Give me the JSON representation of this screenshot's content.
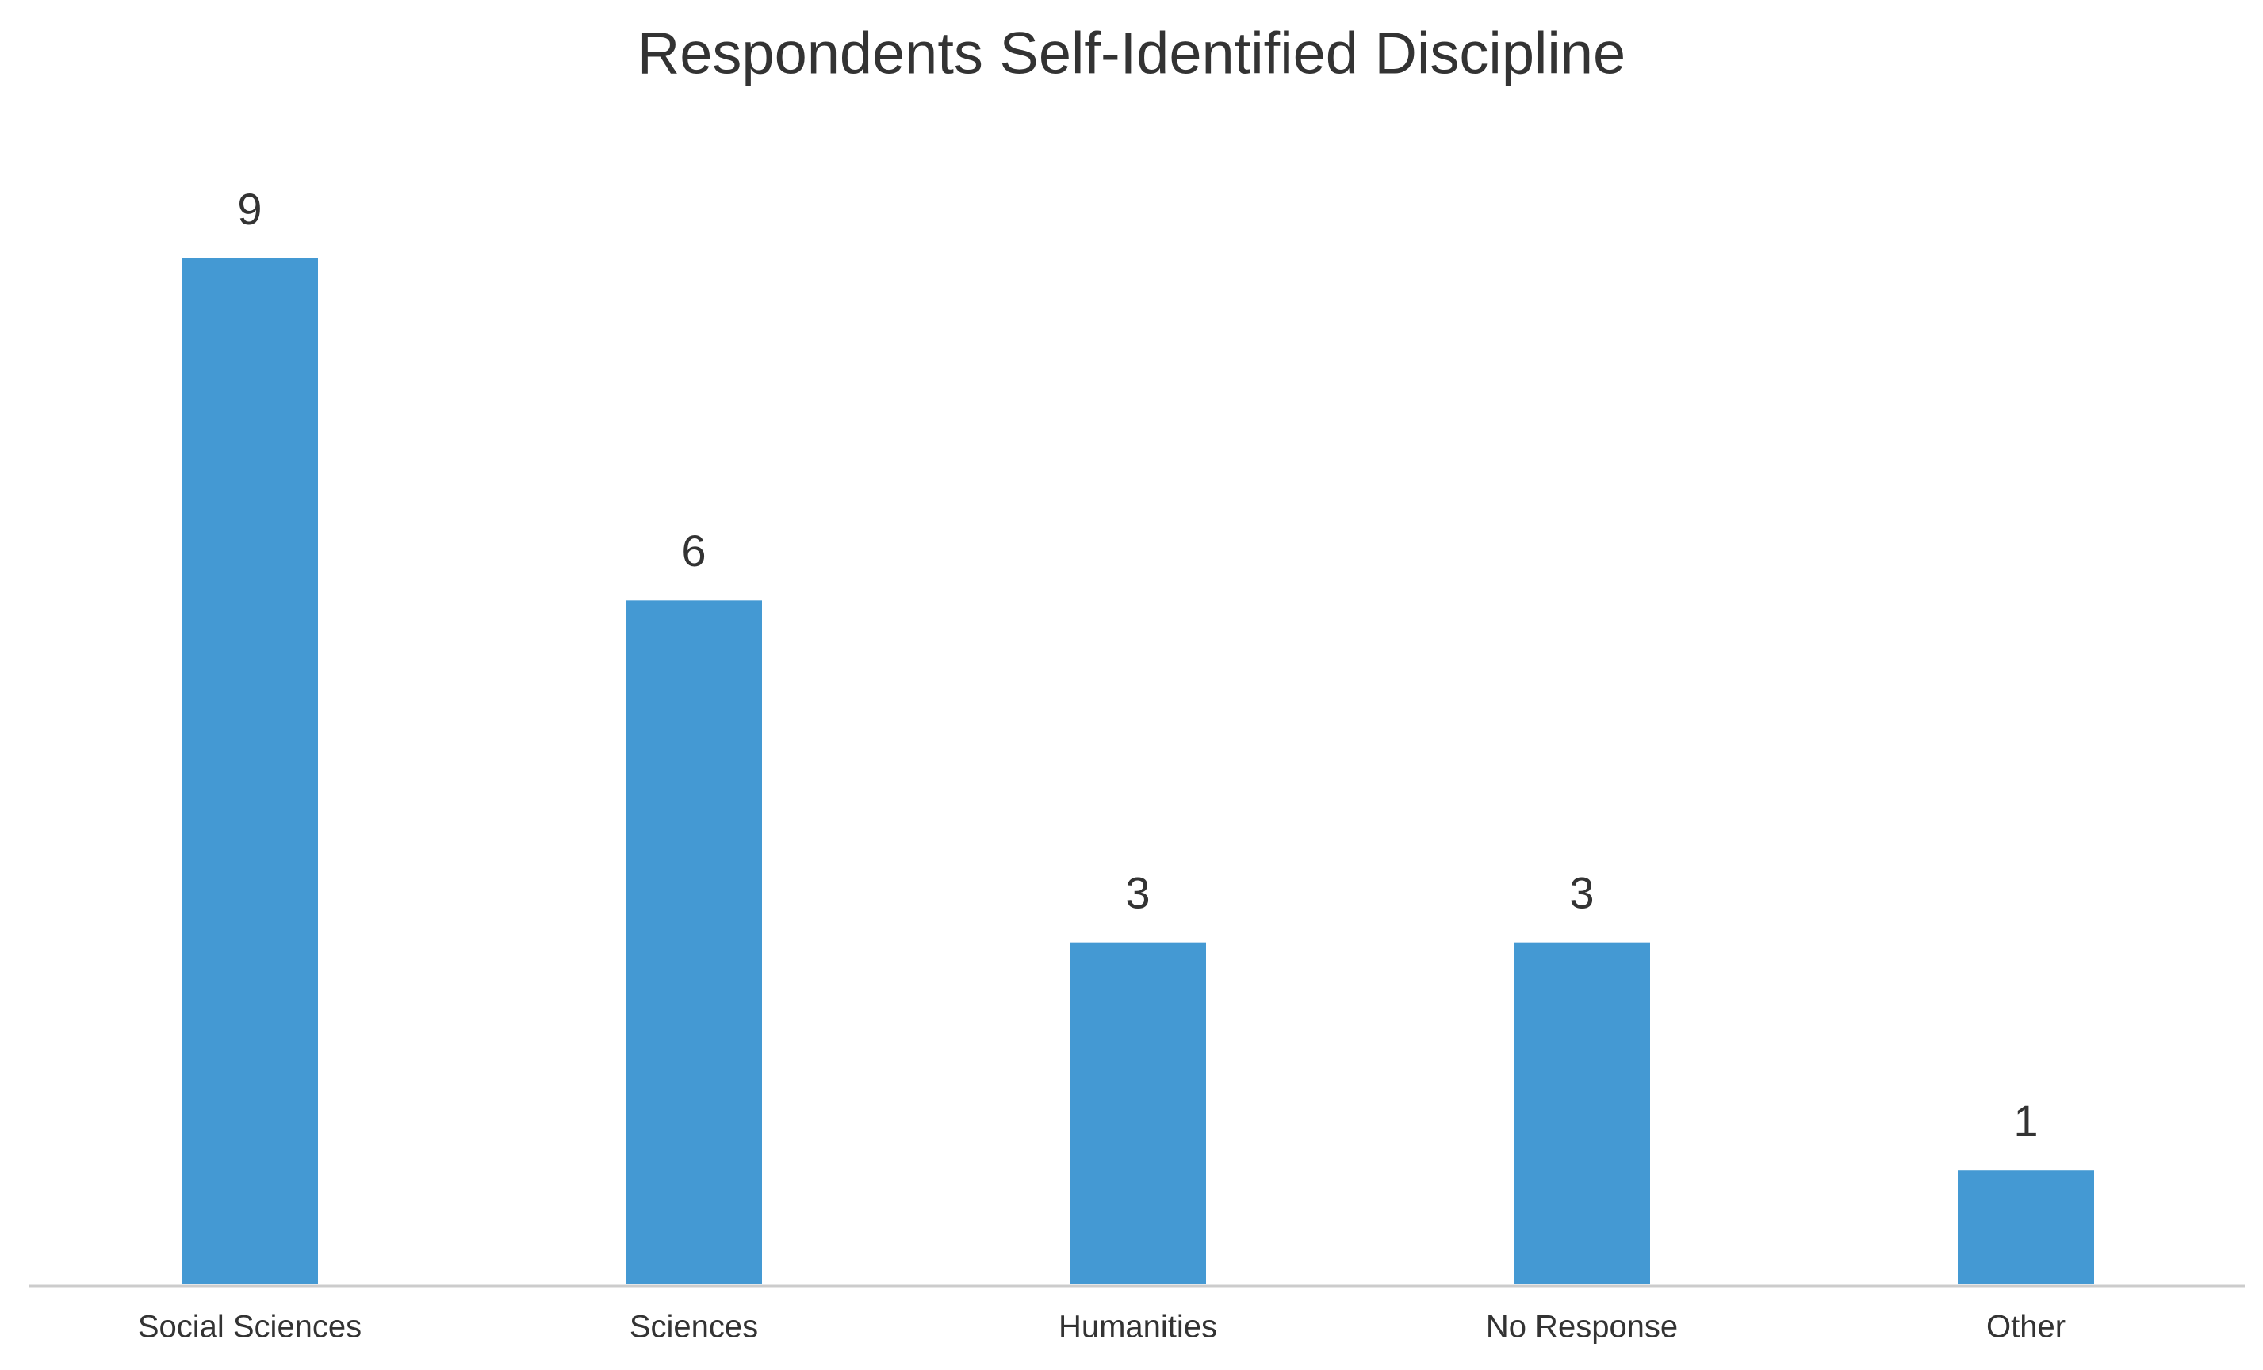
{
  "chart_data": {
    "type": "bar",
    "title": "Respondents Self-Identified Discipline",
    "categories": [
      "Social Sciences",
      "Sciences",
      "Humanities",
      "No Response",
      "Other"
    ],
    "values": [
      9,
      6,
      3,
      3,
      1
    ],
    "color": "#4499d3",
    "grid": false
  }
}
